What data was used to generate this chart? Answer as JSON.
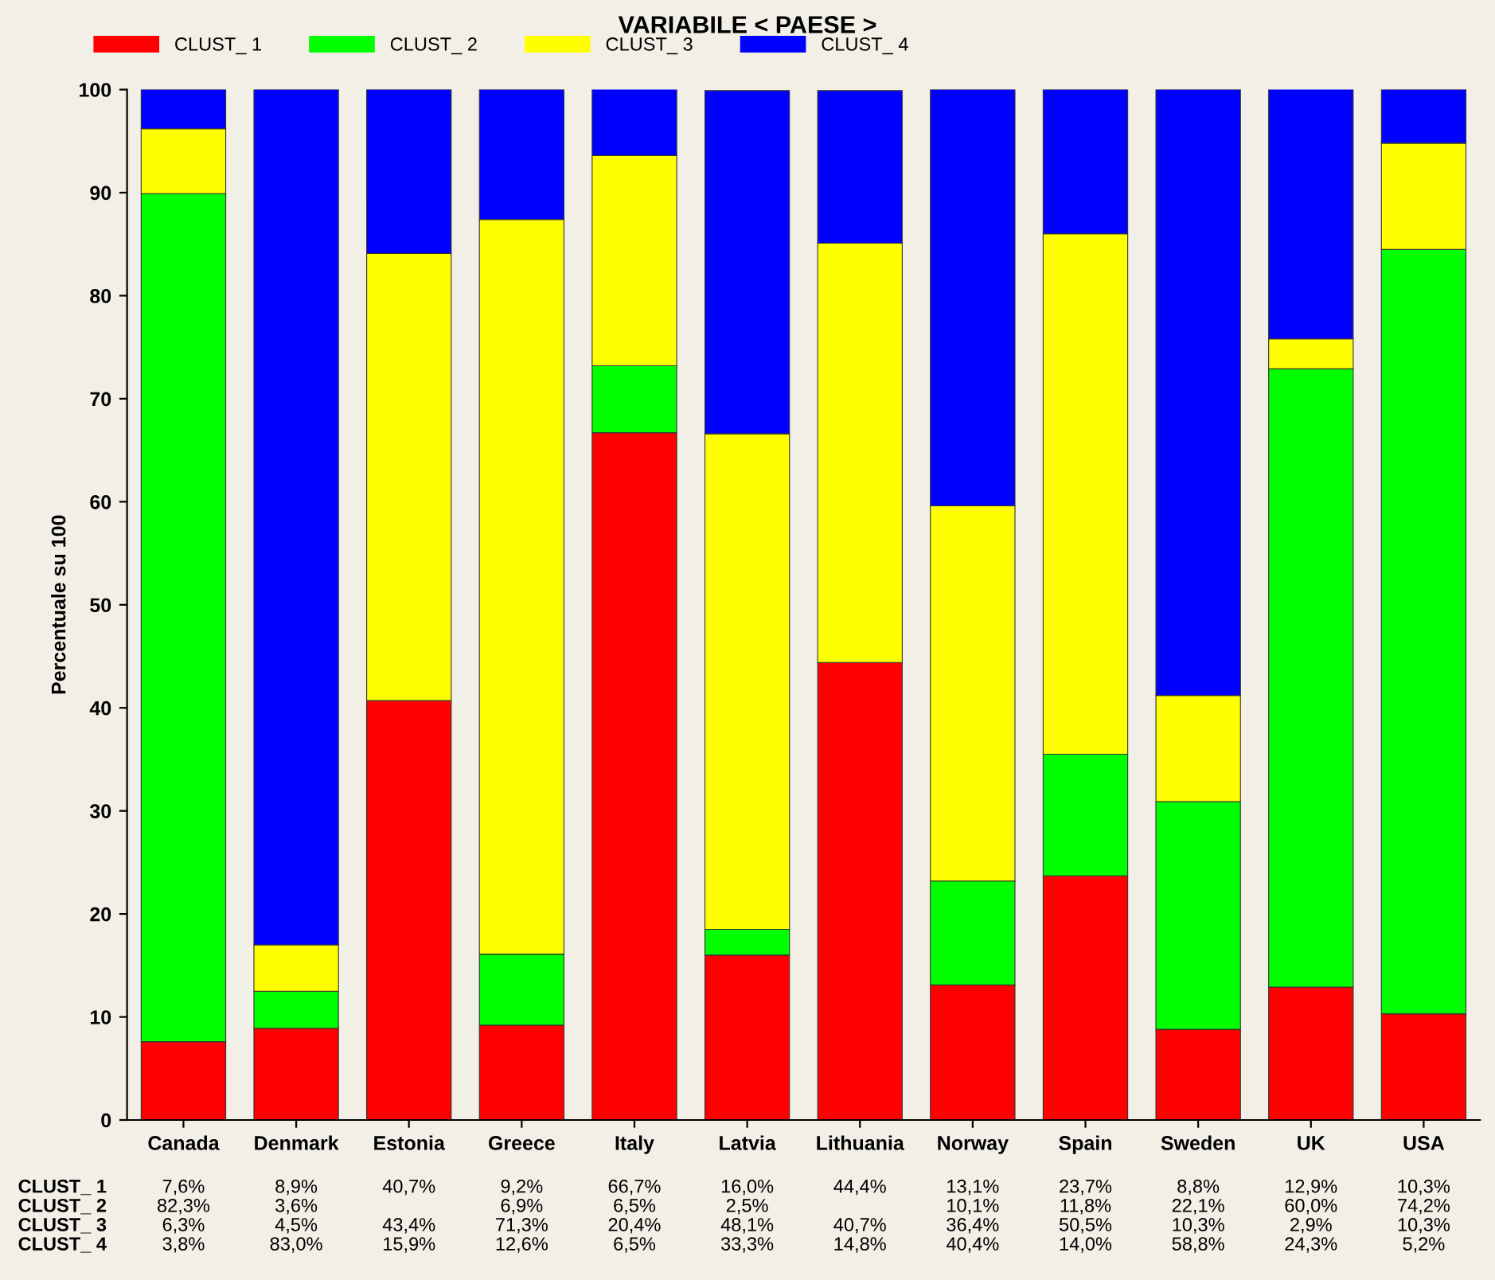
{
  "chart_data": {
    "type": "bar",
    "stacked": true,
    "title": "VARIABILE < PAESE >",
    "ylabel": "Percentuale su 100",
    "categories": [
      "Canada",
      "Denmark",
      "Estonia",
      "Greece",
      "Italy",
      "Latvia",
      "Lithuania",
      "Norway",
      "Spain",
      "Sweden",
      "UK",
      "USA"
    ],
    "series": [
      {
        "name": "CLUST_ 1",
        "color": "#ff0000",
        "values": [
          7.6,
          8.9,
          40.7,
          9.2,
          66.7,
          16.0,
          44.4,
          13.1,
          23.7,
          8.8,
          12.9,
          10.3
        ],
        "value_labels": [
          "7,6%",
          "8,9%",
          "40,7%",
          "9,2%",
          "66,7%",
          "16,0%",
          "44,4%",
          "13,1%",
          "23,7%",
          "8,8%",
          "12,9%",
          "10,3%"
        ]
      },
      {
        "name": "CLUST_ 2",
        "color": "#00ff00",
        "values": [
          82.3,
          3.6,
          null,
          6.9,
          6.5,
          2.5,
          null,
          10.1,
          11.8,
          22.1,
          60.0,
          74.2
        ],
        "value_labels": [
          "82,3%",
          "3,6%",
          null,
          "6,9%",
          "6,5%",
          "2,5%",
          null,
          "10,1%",
          "11,8%",
          "22,1%",
          "60,0%",
          "74,2%"
        ]
      },
      {
        "name": "CLUST_ 3",
        "color": "#ffff00",
        "values": [
          6.3,
          4.5,
          43.4,
          71.3,
          20.4,
          48.1,
          40.7,
          36.4,
          50.5,
          10.3,
          2.9,
          10.3
        ],
        "value_labels": [
          "6,3%",
          "4,5%",
          "43,4%",
          "71,3%",
          "20,4%",
          "48,1%",
          "40,7%",
          "36,4%",
          "50,5%",
          "10,3%",
          "2,9%",
          "10,3%"
        ]
      },
      {
        "name": "CLUST_ 4",
        "color": "#0000ff",
        "values": [
          3.8,
          83.0,
          15.9,
          12.6,
          6.5,
          33.3,
          14.8,
          40.4,
          14.0,
          58.8,
          24.3,
          5.2
        ],
        "value_labels": [
          "3,8%",
          "83,0%",
          "15,9%",
          "12,6%",
          "6,5%",
          "33,3%",
          "14,8%",
          "40,4%",
          "14,0%",
          "58,8%",
          "24,3%",
          "5,2%"
        ]
      }
    ],
    "ylim": [
      0,
      100
    ],
    "yticks": [
      0,
      10,
      20,
      30,
      40,
      50,
      60,
      70,
      80,
      90,
      100
    ],
    "legend": "top left",
    "grid": false
  }
}
